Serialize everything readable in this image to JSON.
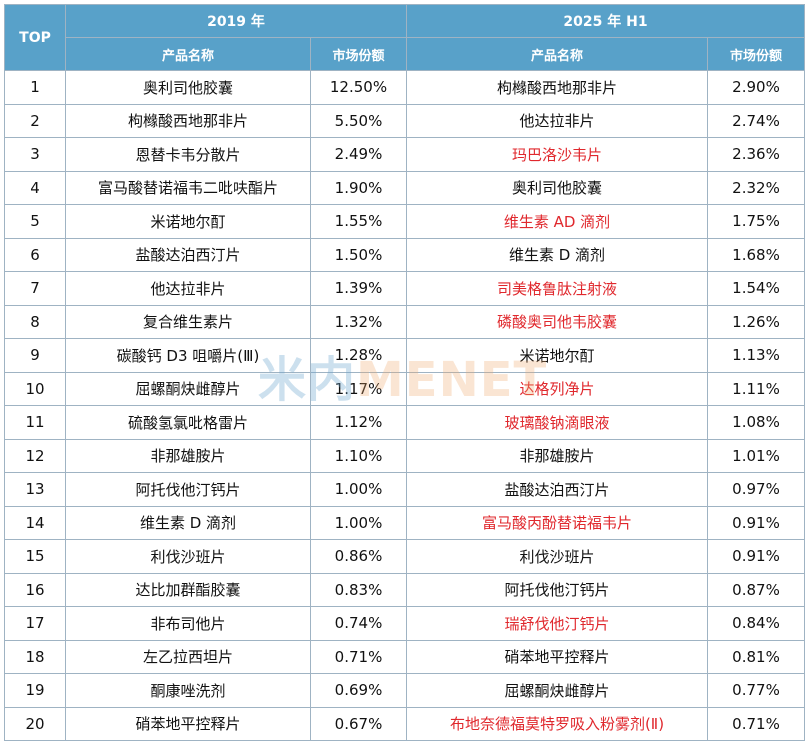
{
  "header": {
    "top": "TOP",
    "year_2019": "2019 年",
    "year_2025": "2025 年 H1",
    "name_col": "产品名称",
    "share_col": "市场份额"
  },
  "watermark": {
    "cn": "米内",
    "en": "MENET"
  },
  "highlight_color": "#e0282d",
  "rows": [
    {
      "rank": "1",
      "n19": "奥利司他胶囊",
      "s19": "12.50%",
      "n25": "枸橼酸西地那非片",
      "s25": "2.90%",
      "hl": false
    },
    {
      "rank": "2",
      "n19": "枸橼酸西地那非片",
      "s19": "5.50%",
      "n25": "他达拉非片",
      "s25": "2.74%",
      "hl": false
    },
    {
      "rank": "3",
      "n19": "恩替卡韦分散片",
      "s19": "2.49%",
      "n25": "玛巴洛沙韦片",
      "s25": "2.36%",
      "hl": true
    },
    {
      "rank": "4",
      "n19": "富马酸替诺福韦二吡呋酯片",
      "s19": "1.90%",
      "n25": "奥利司他胶囊",
      "s25": "2.32%",
      "hl": false
    },
    {
      "rank": "5",
      "n19": "米诺地尔酊",
      "s19": "1.55%",
      "n25": "维生素 AD 滴剂",
      "s25": "1.75%",
      "hl": true
    },
    {
      "rank": "6",
      "n19": "盐酸达泊西汀片",
      "s19": "1.50%",
      "n25": "维生素 D 滴剂",
      "s25": "1.68%",
      "hl": false
    },
    {
      "rank": "7",
      "n19": "他达拉非片",
      "s19": "1.39%",
      "n25": "司美格鲁肽注射液",
      "s25": "1.54%",
      "hl": true
    },
    {
      "rank": "8",
      "n19": "复合维生素片",
      "s19": "1.32%",
      "n25": "磷酸奥司他韦胶囊",
      "s25": "1.26%",
      "hl": true
    },
    {
      "rank": "9",
      "n19": "碳酸钙 D3 咀嚼片(Ⅲ)",
      "s19": "1.28%",
      "n25": "米诺地尔酊",
      "s25": "1.13%",
      "hl": false
    },
    {
      "rank": "10",
      "n19": "屈螺酮炔雌醇片",
      "s19": "1.17%",
      "n25": "达格列净片",
      "s25": "1.11%",
      "hl": true
    },
    {
      "rank": "11",
      "n19": "硫酸氢氯吡格雷片",
      "s19": "1.12%",
      "n25": "玻璃酸钠滴眼液",
      "s25": "1.08%",
      "hl": true
    },
    {
      "rank": "12",
      "n19": "非那雄胺片",
      "s19": "1.10%",
      "n25": "非那雄胺片",
      "s25": "1.01%",
      "hl": false
    },
    {
      "rank": "13",
      "n19": "阿托伐他汀钙片",
      "s19": "1.00%",
      "n25": "盐酸达泊西汀片",
      "s25": "0.97%",
      "hl": false
    },
    {
      "rank": "14",
      "n19": "维生素 D 滴剂",
      "s19": "1.00%",
      "n25": "富马酸丙酚替诺福韦片",
      "s25": "0.91%",
      "hl": true
    },
    {
      "rank": "15",
      "n19": "利伐沙班片",
      "s19": "0.86%",
      "n25": "利伐沙班片",
      "s25": "0.91%",
      "hl": false
    },
    {
      "rank": "16",
      "n19": "达比加群酯胶囊",
      "s19": "0.83%",
      "n25": "阿托伐他汀钙片",
      "s25": "0.87%",
      "hl": false
    },
    {
      "rank": "17",
      "n19": "非布司他片",
      "s19": "0.74%",
      "n25": "瑞舒伐他汀钙片",
      "s25": "0.84%",
      "hl": true
    },
    {
      "rank": "18",
      "n19": "左乙拉西坦片",
      "s19": "0.71%",
      "n25": "硝苯地平控释片",
      "s25": "0.81%",
      "hl": false
    },
    {
      "rank": "19",
      "n19": "酮康唑洗剂",
      "s19": "0.69%",
      "n25": "屈螺酮炔雌醇片",
      "s25": "0.77%",
      "hl": false
    },
    {
      "rank": "20",
      "n19": "硝苯地平控释片",
      "s19": "0.67%",
      "n25": "布地奈德福莫特罗吸入粉雾剂(Ⅱ)",
      "s25": "0.71%",
      "hl": true
    }
  ]
}
